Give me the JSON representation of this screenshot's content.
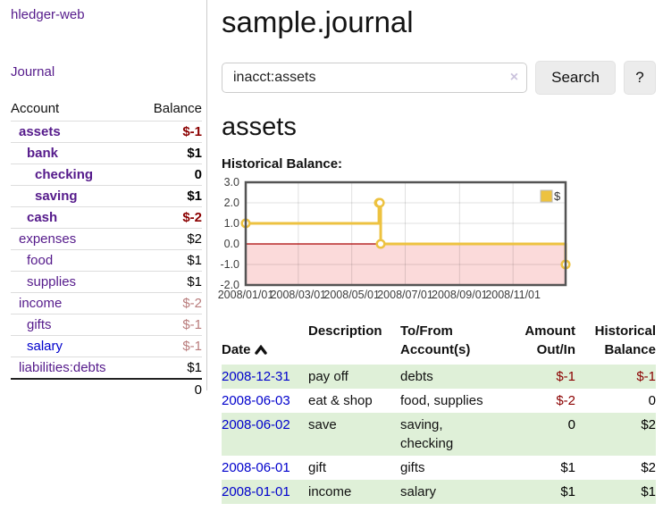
{
  "sidebar": {
    "brand": "hledger-web",
    "nav": {
      "journal": "Journal"
    },
    "table": {
      "account_header": "Account",
      "balance_header": "Balance"
    },
    "accounts": [
      {
        "name": "assets",
        "level": 1,
        "bold": true,
        "link_color": "purple",
        "balance": "$-1",
        "balance_class": "neg-strong"
      },
      {
        "name": "bank",
        "level": 2,
        "bold": true,
        "link_color": "purple",
        "balance": "$1",
        "balance_class": "plain"
      },
      {
        "name": "checking",
        "level": 3,
        "bold": true,
        "link_color": "purple",
        "balance": "0",
        "balance_class": "plain"
      },
      {
        "name": "saving",
        "level": 3,
        "bold": true,
        "link_color": "purple",
        "balance": "$1",
        "balance_class": "plain"
      },
      {
        "name": "cash",
        "level": 2,
        "bold": true,
        "link_color": "purple",
        "balance": "$-2",
        "balance_class": "neg-strong"
      },
      {
        "name": "expenses",
        "level": 1,
        "bold": false,
        "link_color": "purple",
        "balance": "$2",
        "balance_class": "plain"
      },
      {
        "name": "food",
        "level": 2,
        "bold": false,
        "link_color": "purple",
        "balance": "$1",
        "balance_class": "plain"
      },
      {
        "name": "supplies",
        "level": 2,
        "bold": false,
        "link_color": "purple",
        "balance": "$1",
        "balance_class": "plain"
      },
      {
        "name": "income",
        "level": 1,
        "bold": false,
        "link_color": "purple",
        "balance": "$-2",
        "balance_class": "neg-muted"
      },
      {
        "name": "gifts",
        "level": 2,
        "bold": false,
        "link_color": "purple",
        "balance": "$-1",
        "balance_class": "neg-muted"
      },
      {
        "name": "salary",
        "level": 2,
        "bold": false,
        "link_color": "blue",
        "balance": "$-1",
        "balance_class": "neg-muted"
      },
      {
        "name": "liabilities:debts",
        "level": 1,
        "bold": false,
        "link_color": "purple",
        "balance": "$1",
        "balance_class": "plain"
      }
    ],
    "total": "0"
  },
  "header": {
    "title": "sample.journal"
  },
  "search": {
    "value": "inacct:assets",
    "clear_icon": "×",
    "button": "Search",
    "help_button": "?"
  },
  "account_page": {
    "heading": "assets",
    "chart_label": "Historical Balance:"
  },
  "chart_data": {
    "type": "line",
    "step": true,
    "title": "Historical Balance",
    "series": [
      {
        "name": "$",
        "color": "#edc240",
        "points": [
          [
            "2008-01-01",
            1
          ],
          [
            "2008-06-01",
            2
          ],
          [
            "2008-06-02",
            2
          ],
          [
            "2008-06-03",
            0
          ],
          [
            "2008-12-31",
            -1
          ]
        ]
      }
    ],
    "x_range": [
      "2008-01-01",
      "2008-12-31"
    ],
    "x_ticks": [
      "2008/01/01",
      "2008/03/01",
      "2008/05/01",
      "2008/07/01",
      "2008/09/01",
      "2008/11/01"
    ],
    "y_ticks": [
      3.0,
      2.0,
      1.0,
      0.0,
      -1.0,
      -2.0
    ],
    "ylim": [
      -2,
      3
    ],
    "grid": true,
    "legend_position": "top-right",
    "negative_region_color": "#fbdada",
    "zero_line_color": "#aa0000",
    "border_color": "#545454",
    "tick_label_color": "#3c3c3c"
  },
  "register": {
    "headers": {
      "date": "Date",
      "description": "Description",
      "accounts": "To/From\nAccount(s)",
      "amount": "Amount\nOut/In",
      "balance": "Historical\nBalance"
    },
    "rows": [
      {
        "date": "2008-12-31",
        "description": "pay off",
        "accounts": "debts",
        "amount": "$-1",
        "amount_class": "neg",
        "balance": "$-1",
        "balance_class": "neg"
      },
      {
        "date": "2008-06-03",
        "description": "eat & shop",
        "accounts": "food, supplies",
        "amount": "$-2",
        "amount_class": "neg",
        "balance": "0",
        "balance_class": "plain"
      },
      {
        "date": "2008-06-02",
        "description": "save",
        "accounts": "saving,\nchecking",
        "amount": "0",
        "amount_class": "plain",
        "balance": "$2",
        "balance_class": "plain"
      },
      {
        "date": "2008-06-01",
        "description": "gift",
        "accounts": "gifts",
        "amount": "$1",
        "amount_class": "plain",
        "balance": "$2",
        "balance_class": "plain"
      },
      {
        "date": "2008-01-01",
        "description": "income",
        "accounts": "salary",
        "amount": "$1",
        "amount_class": "plain",
        "balance": "$1",
        "balance_class": "plain"
      }
    ]
  }
}
